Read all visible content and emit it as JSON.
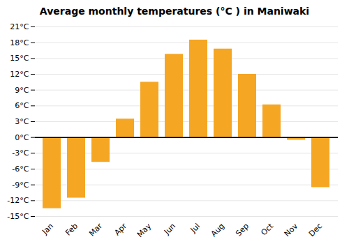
{
  "chart_data": {
    "type": "bar",
    "title": "Average monthly temperatures (°C ) in Maniwaki",
    "categories": [
      "Jan",
      "Feb",
      "Mar",
      "Apr",
      "May",
      "Jun",
      "Jul",
      "Aug",
      "Sep",
      "Oct",
      "Nov",
      "Dec"
    ],
    "values": [
      -13.5,
      -11.5,
      -4.7,
      3.5,
      10.5,
      15.8,
      18.5,
      16.8,
      12.0,
      6.2,
      -0.5,
      -9.5
    ],
    "color": "#F5A623",
    "ylim": [
      -15,
      21
    ],
    "yticks": [
      {
        "value": -15,
        "label": "-15°C"
      },
      {
        "value": -12,
        "label": "-12°C"
      },
      {
        "value": -9,
        "label": "-9°C"
      },
      {
        "value": -6,
        "label": "-6°C"
      },
      {
        "value": -3,
        "label": "-3°C"
      },
      {
        "value": 0,
        "label": "0°C"
      },
      {
        "value": 3,
        "label": "3°C"
      },
      {
        "value": 6,
        "label": "6°C"
      },
      {
        "value": 9,
        "label": "9°C"
      },
      {
        "value": 12,
        "label": "12°C"
      },
      {
        "value": 15,
        "label": "15°C"
      },
      {
        "value": 18,
        "label": "18°C"
      },
      {
        "value": 21,
        "label": "21°C"
      }
    ],
    "grid": true
  }
}
